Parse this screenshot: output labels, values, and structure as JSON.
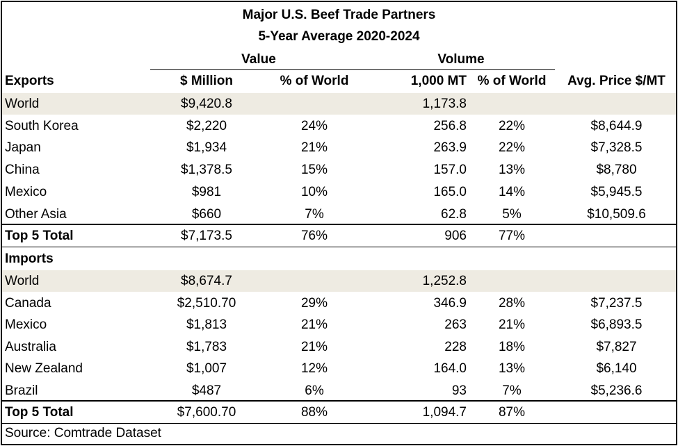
{
  "title_line1": "Major U.S. Beef Trade Partners",
  "title_line2": "5-Year Average 2020-2024",
  "groups": {
    "value": "Value",
    "volume": "Volume"
  },
  "header": {
    "section": "Exports",
    "cols": [
      "$ Million",
      "% of World",
      "1,000 MT",
      "% of World",
      "Avg. Price $/MT"
    ]
  },
  "exports": {
    "world": [
      "World",
      "$9,420.8",
      "",
      "1,173.8",
      "",
      ""
    ],
    "rows": [
      [
        "South Korea",
        "$2,220",
        "24%",
        "256.8",
        "22%",
        "$8,644.9"
      ],
      [
        "Japan",
        "$1,934",
        "21%",
        "263.9",
        "22%",
        "$7,328.5"
      ],
      [
        "China",
        "$1,378.5",
        "15%",
        "157.0",
        "13%",
        "$8,780"
      ],
      [
        "Mexico",
        "$981",
        "10%",
        "165.0",
        "14%",
        "$5,945.5"
      ],
      [
        "Other Asia",
        "$660",
        "7%",
        "62.8",
        "5%",
        "$10,509.6"
      ]
    ],
    "total": [
      "Top 5 Total",
      "$7,173.5",
      "76%",
      "906",
      "77%",
      ""
    ]
  },
  "imports": {
    "section": "Imports",
    "world": [
      "World",
      "$8,674.7",
      "",
      "1,252.8",
      "",
      ""
    ],
    "rows": [
      [
        "Canada",
        "$2,510.70",
        "29%",
        "346.9",
        "28%",
        "$7,237.5"
      ],
      [
        "Mexico",
        "$1,813",
        "21%",
        "263",
        "21%",
        "$6,893.5"
      ],
      [
        "Australia",
        "$1,783",
        "21%",
        "228",
        "18%",
        "$7,827"
      ],
      [
        "New Zealand",
        "$1,007",
        "12%",
        "164.0",
        "13%",
        "$6,140"
      ],
      [
        "Brazil",
        "$487",
        "6%",
        "93",
        "7%",
        "$5,236.6"
      ]
    ],
    "total": [
      "Top 5 Total",
      "$7,600.70",
      "88%",
      "1,094.7",
      "87%",
      ""
    ]
  },
  "source": "Source: Comtrade Dataset"
}
